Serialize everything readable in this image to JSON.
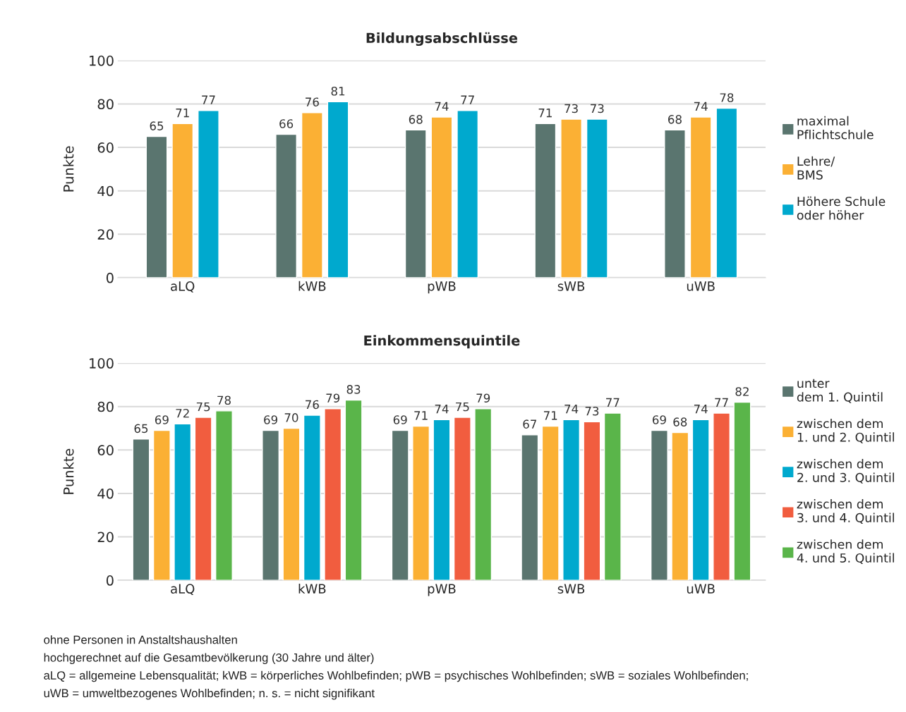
{
  "chart_data": [
    {
      "type": "bar",
      "title": "Bildungsabschlüsse",
      "ylabel": "Punkte",
      "categories": [
        "aLQ",
        "kWB",
        "pWB",
        "sWB",
        "uWB"
      ],
      "ylim": [
        0,
        100
      ],
      "yticks": [
        0,
        20,
        40,
        60,
        80,
        100
      ],
      "grid": "y",
      "legend": "right",
      "data_labels": true,
      "series": [
        {
          "name": "maximal\nPflichtschule",
          "color": "#5a756f",
          "values": [
            65,
            66,
            68,
            71,
            68
          ]
        },
        {
          "name": "Lehre/\nBMS",
          "color": "#fbb034",
          "values": [
            71,
            76,
            74,
            73,
            74
          ]
        },
        {
          "name": "Höhere Schule\noder höher",
          "color": "#00a9ce",
          "values": [
            77,
            81,
            77,
            73,
            78
          ]
        }
      ]
    },
    {
      "type": "bar",
      "title": "Einkommensquintile",
      "ylabel": "Punkte",
      "categories": [
        "aLQ",
        "kWB",
        "pWB",
        "sWB",
        "uWB"
      ],
      "ylim": [
        0,
        100
      ],
      "yticks": [
        0,
        20,
        40,
        60,
        80,
        100
      ],
      "grid": "y",
      "legend": "right",
      "data_labels": true,
      "series": [
        {
          "name": "unter\ndem 1. Quintil",
          "color": "#5a756f",
          "values": [
            65,
            69,
            69,
            67,
            69
          ]
        },
        {
          "name": "zwischen dem\n1. und 2. Quintil",
          "color": "#fbb034",
          "values": [
            69,
            70,
            71,
            71,
            68
          ]
        },
        {
          "name": "zwischen dem\n2. und 3. Quintil",
          "color": "#00a9ce",
          "values": [
            72,
            76,
            74,
            74,
            74
          ]
        },
        {
          "name": "zwischen dem\n3. und 4. Quintil",
          "color": "#f15d3f",
          "values": [
            75,
            79,
            75,
            73,
            77
          ]
        },
        {
          "name": "zwischen dem\n4. und 5. Quintil",
          "color": "#5ab54a",
          "values": [
            78,
            83,
            79,
            77,
            82
          ]
        }
      ],
      "annotations": [
        "ohne Personen in Anstaltshaushalten",
        "hochgerechnet auf die Gesamtbevölkerung (30 Jahre und älter)",
        "aLQ = allgemeine Lebensqualität; kWB = körperliches Wohlbefinden; pWB = psychisches Wohlbefinden; sWB = soziales Wohlbefinden;",
        "uWB = umweltbezogenes Wohlbefinden; n. s. = nicht signifikant"
      ]
    }
  ]
}
